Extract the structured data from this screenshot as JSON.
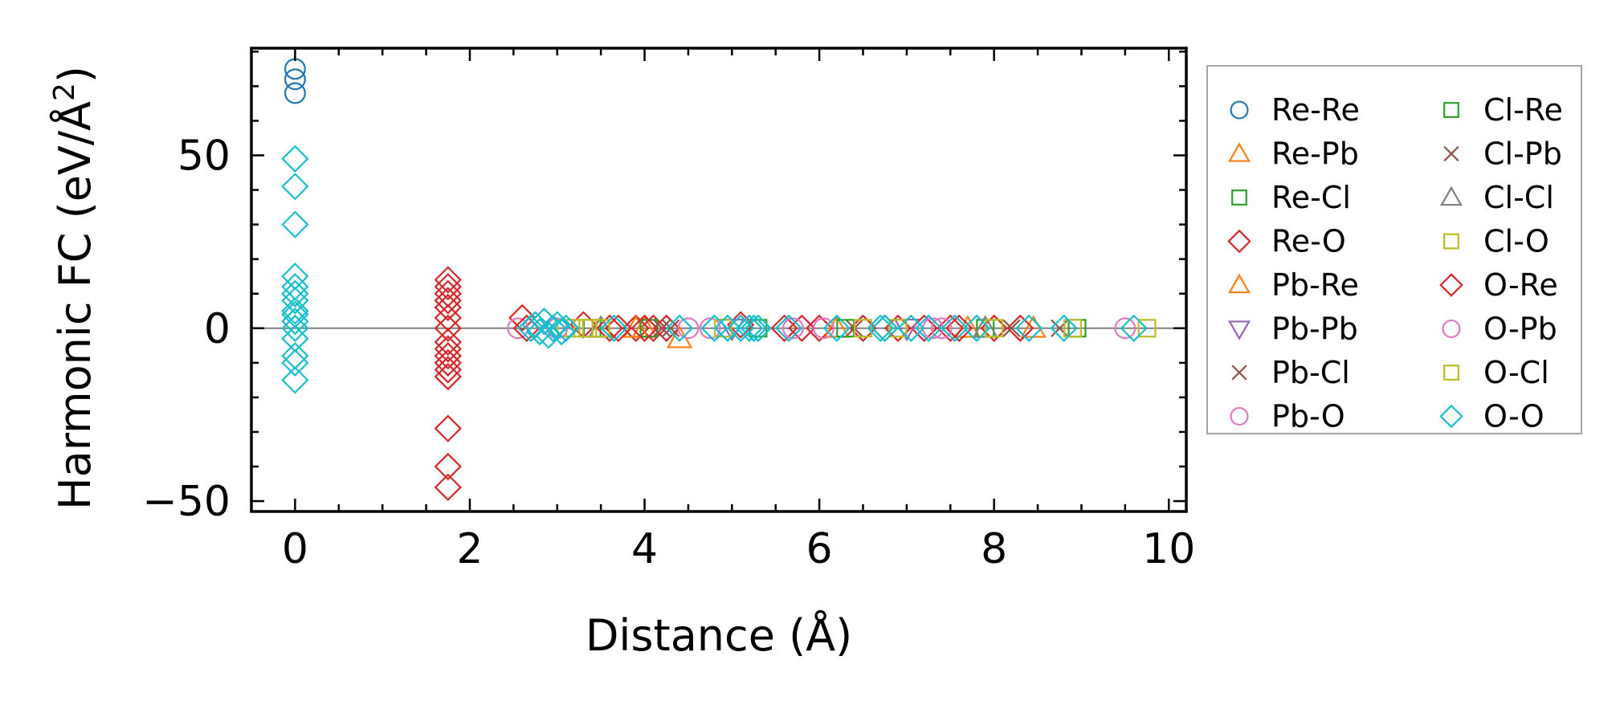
{
  "chart_data": {
    "type": "scatter",
    "title": "",
    "xlabel": "Distance (Å)",
    "ylabel": "Harmonic FC (eV/Å²)",
    "ylabel_parts": {
      "main": "Harmonic FC (eV/Å",
      "sup": "2",
      "close": ")"
    },
    "xlim": [
      -0.5,
      10.2
    ],
    "ylim": [
      -53,
      81
    ],
    "x_ticks": [
      0,
      2,
      4,
      6,
      8,
      10
    ],
    "x_tick_labels": [
      "0",
      "2",
      "4",
      "6",
      "8",
      "10"
    ],
    "y_ticks": [
      -50,
      0,
      50
    ],
    "y_tick_labels": [
      "−50",
      "0",
      "50"
    ],
    "x_minor_step": 0.5,
    "y_minor_step": 10,
    "zero_line": true,
    "grid": false,
    "legend_position": "outside right",
    "series": [
      {
        "name": "Re-Re",
        "marker": "circle",
        "color": "#1f77b4",
        "points": [
          [
            0,
            75
          ],
          [
            0,
            72
          ],
          [
            0,
            68
          ]
        ]
      },
      {
        "name": "Re-Pb",
        "marker": "triangle-up",
        "color": "#ff7f0e",
        "points": [
          [
            4.0,
            0
          ],
          [
            4.4,
            -3
          ],
          [
            8.45,
            0
          ],
          [
            7.7,
            0
          ]
        ]
      },
      {
        "name": "Re-Cl",
        "marker": "square",
        "color": "#2ca02c",
        "points": [
          [
            3.4,
            0
          ],
          [
            5.3,
            0
          ],
          [
            7.9,
            0
          ],
          [
            8.95,
            0
          ]
        ]
      },
      {
        "name": "Re-O",
        "marker": "diamond",
        "color": "#d62728",
        "points": [
          [
            1.75,
            14
          ],
          [
            1.75,
            12
          ],
          [
            1.75,
            10
          ],
          [
            1.75,
            8
          ],
          [
            1.75,
            6
          ],
          [
            1.75,
            3
          ],
          [
            1.75,
            0
          ],
          [
            1.75,
            -4
          ],
          [
            1.75,
            -6
          ],
          [
            1.75,
            -8
          ],
          [
            1.75,
            -10
          ],
          [
            1.75,
            -12
          ],
          [
            1.75,
            -14
          ],
          [
            1.75,
            -29
          ],
          [
            1.75,
            -40
          ],
          [
            1.75,
            -46
          ],
          [
            2.6,
            3
          ],
          [
            3.3,
            1
          ],
          [
            3.6,
            0
          ],
          [
            3.9,
            0
          ],
          [
            4.1,
            0
          ],
          [
            4.25,
            0
          ],
          [
            5.1,
            1
          ],
          [
            5.8,
            0
          ],
          [
            6.0,
            0
          ],
          [
            6.5,
            0
          ],
          [
            6.9,
            0
          ],
          [
            7.2,
            0
          ],
          [
            7.5,
            0
          ],
          [
            8.0,
            0
          ],
          [
            8.3,
            0
          ]
        ]
      },
      {
        "name": "Pb-Re",
        "marker": "triangle-up",
        "color": "#ff7f0e",
        "points": [
          [
            3.9,
            0
          ],
          [
            6.2,
            0
          ]
        ]
      },
      {
        "name": "Pb-Pb",
        "marker": "triangle-down",
        "color": "#9467bd",
        "points": [
          [
            5.0,
            0
          ],
          [
            7.0,
            0
          ]
        ]
      },
      {
        "name": "Pb-Cl",
        "marker": "x",
        "color": "#8c564b",
        "points": [
          [
            4.3,
            0
          ],
          [
            6.4,
            0
          ],
          [
            8.75,
            0
          ]
        ]
      },
      {
        "name": "Pb-O",
        "marker": "circle",
        "color": "#e377c2",
        "points": [
          [
            2.55,
            0
          ],
          [
            4.5,
            0
          ],
          [
            4.75,
            0
          ],
          [
            6.05,
            0
          ],
          [
            7.3,
            0
          ],
          [
            9.5,
            0
          ]
        ]
      },
      {
        "name": "Cl-Re",
        "marker": "square",
        "color": "#2ca02c",
        "points": [
          [
            4.05,
            0
          ],
          [
            6.3,
            0
          ]
        ]
      },
      {
        "name": "Cl-Pb",
        "marker": "x",
        "color": "#8c564b",
        "points": [
          [
            4.2,
            0
          ],
          [
            8.2,
            0
          ]
        ]
      },
      {
        "name": "Cl-Cl",
        "marker": "triangle-up",
        "color": "#7f7f7f",
        "points": [
          [
            3.5,
            0
          ],
          [
            7.9,
            0
          ]
        ]
      },
      {
        "name": "Cl-O",
        "marker": "square",
        "color": "#bcbd22",
        "points": [
          [
            3.1,
            0
          ],
          [
            3.2,
            0
          ],
          [
            3.35,
            0
          ],
          [
            4.9,
            0
          ],
          [
            6.9,
            0
          ],
          [
            8.0,
            0
          ],
          [
            9.75,
            0
          ]
        ]
      },
      {
        "name": "O-Re",
        "marker": "diamond",
        "color": "#d62728",
        "points": [
          [
            2.65,
            0
          ],
          [
            3.7,
            0
          ],
          [
            4.0,
            0
          ],
          [
            5.6,
            0
          ],
          [
            6.75,
            0
          ],
          [
            7.6,
            0
          ]
        ]
      },
      {
        "name": "O-Pb",
        "marker": "circle",
        "color": "#e377c2",
        "points": [
          [
            3.0,
            0
          ],
          [
            5.7,
            0
          ],
          [
            7.4,
            0
          ]
        ]
      },
      {
        "name": "O-Cl",
        "marker": "square",
        "color": "#bcbd22",
        "points": [
          [
            3.5,
            0
          ],
          [
            6.5,
            0
          ],
          [
            8.9,
            0
          ]
        ]
      },
      {
        "name": "O-O",
        "marker": "diamond",
        "color": "#17becf",
        "points": [
          [
            0,
            49
          ],
          [
            0,
            41
          ],
          [
            0,
            30
          ],
          [
            0,
            15
          ],
          [
            0,
            12
          ],
          [
            0,
            10
          ],
          [
            0,
            8
          ],
          [
            0,
            5
          ],
          [
            0,
            4
          ],
          [
            0,
            2
          ],
          [
            0,
            0
          ],
          [
            0,
            -3
          ],
          [
            0,
            -8
          ],
          [
            0,
            -10
          ],
          [
            0,
            -15
          ],
          [
            2.7,
            0
          ],
          [
            2.75,
            1
          ],
          [
            2.8,
            -1
          ],
          [
            2.85,
            2
          ],
          [
            2.9,
            -2
          ],
          [
            2.95,
            0
          ],
          [
            3.0,
            1
          ],
          [
            3.05,
            -1
          ],
          [
            3.1,
            0
          ],
          [
            3.65,
            0
          ],
          [
            4.4,
            0
          ],
          [
            4.8,
            0
          ],
          [
            4.95,
            0
          ],
          [
            5.1,
            0
          ],
          [
            5.2,
            0
          ],
          [
            5.25,
            0
          ],
          [
            5.3,
            0
          ],
          [
            5.65,
            0
          ],
          [
            6.2,
            0
          ],
          [
            6.7,
            0
          ],
          [
            6.75,
            0
          ],
          [
            7.05,
            0
          ],
          [
            7.25,
            0
          ],
          [
            7.55,
            0
          ],
          [
            7.8,
            0
          ],
          [
            8.4,
            0
          ],
          [
            8.8,
            0
          ],
          [
            9.6,
            0
          ]
        ]
      }
    ]
  }
}
